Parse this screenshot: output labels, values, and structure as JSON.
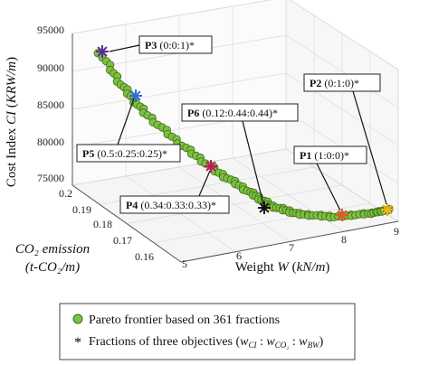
{
  "chart_data": {
    "type": "scatter",
    "projection": "3d",
    "axes": {
      "x": {
        "label_parts": [
          "Weight ",
          "W",
          " (",
          "kN/m",
          ")"
        ],
        "ticks": [
          "5",
          "6",
          "7",
          "8",
          "9"
        ],
        "range": [
          5,
          9
        ]
      },
      "y": {
        "label_line1": "CO₂ emission",
        "label_line2": "(t-CO₂/m)",
        "ticks": [
          "0.16",
          "0.17",
          "0.18",
          "0.19",
          "0.2"
        ],
        "range": [
          0.16,
          0.2
        ]
      },
      "z": {
        "label_parts": [
          "Cost Index ",
          "CI",
          " (",
          "KRW/m",
          ")"
        ],
        "ticks": [
          "75000",
          "80000",
          "85000",
          "90000",
          "95000"
        ],
        "range": [
          75000,
          95000
        ]
      }
    },
    "series": [
      {
        "name": "Pareto frontier based on 361 fractions",
        "marker": "circle",
        "color": "#7dc142",
        "edge": "#3d6b16"
      },
      {
        "name": "Fractions of three objectives",
        "marker": "asterisk"
      }
    ],
    "annotations": [
      {
        "id": "P3",
        "label": "P3",
        "text": " (0:0:1)*",
        "color": "#5b2d91"
      },
      {
        "id": "P5",
        "label": "P5",
        "text": " (0.5:0.25:0.25)*",
        "color": "#2e6fd1"
      },
      {
        "id": "P4",
        "label": "P4",
        "text": " (0.34:0.33:0.33)*",
        "color": "#c2185b"
      },
      {
        "id": "P6",
        "label": "P6",
        "text": " (0.12:0.44:0.44)*",
        "color": "#111111"
      },
      {
        "id": "P1",
        "label": "P1",
        "text": " (1:0:0)*",
        "color": "#e05a2a"
      },
      {
        "id": "P2",
        "label": "P2",
        "text": " (0:1:0)*",
        "color": "#f2b21b"
      }
    ],
    "legend": {
      "placement": "bottom",
      "item1": "Pareto frontier based on 361 fractions",
      "item2_prefix": "Fractions of three objectives (",
      "item2_math": "w",
      "item2_sub_ci": "CI",
      "item2_sub_co2": "CO₂",
      "item2_sub_bw": "BW",
      "item2_suffix": ")"
    },
    "grid": true
  }
}
